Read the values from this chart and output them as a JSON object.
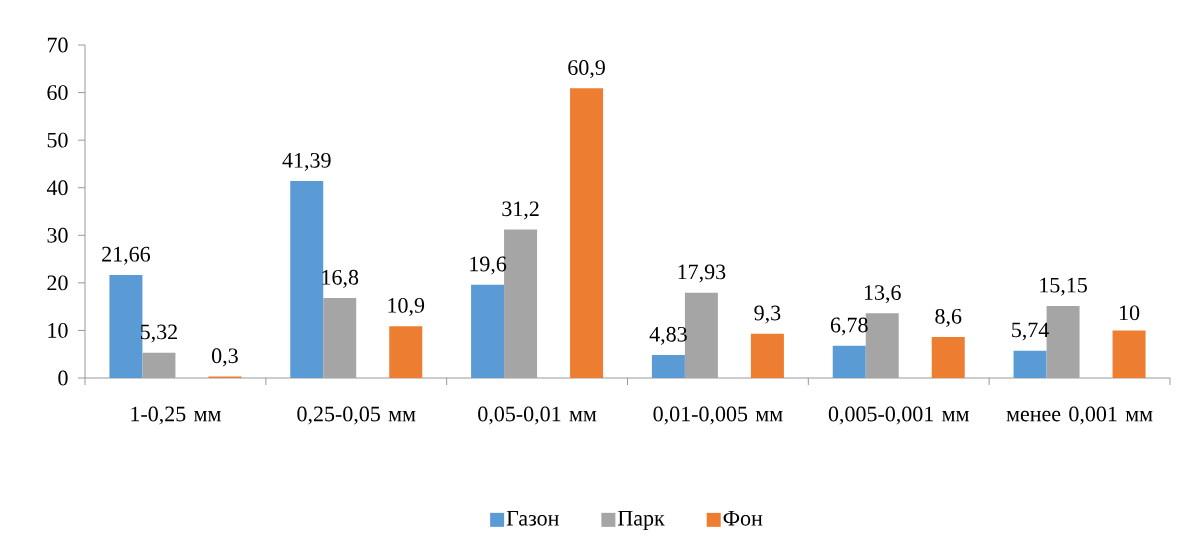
{
  "chart_data": {
    "type": "bar",
    "categories": [
      "1-0,25 мм",
      "0,25-0,05 мм",
      "0,05-0,01 мм",
      "0,01-0,005 мм",
      "0,005-0,001 мм",
      "менее 0,001 мм"
    ],
    "series": [
      {
        "name": "Газон",
        "color": "#5b9bd5",
        "values": [
          21.66,
          41.39,
          19.6,
          4.83,
          6.78,
          5.74
        ],
        "value_labels": [
          "21,66",
          "41,39",
          "19,6",
          "4,83",
          "6,78",
          "5,74"
        ]
      },
      {
        "name": "Парк",
        "color": "#a5a5a5",
        "values": [
          5.32,
          16.8,
          31.2,
          17.93,
          13.6,
          15.15
        ],
        "value_labels": [
          "5,32",
          "16,8",
          "31,2",
          "17,93",
          "13,6",
          "15,15"
        ]
      },
      {
        "name": "Фон",
        "color": "#ed7d31",
        "values": [
          0.3,
          10.9,
          60.9,
          9.3,
          8.6,
          10
        ],
        "value_labels": [
          "0,3",
          "10,9",
          "60,9",
          "9,3",
          "8,6",
          "10"
        ]
      }
    ],
    "ylim": [
      0,
      70
    ],
    "yticks": [
      0,
      10,
      20,
      30,
      40,
      50,
      60,
      70
    ],
    "legend": "bottom"
  }
}
